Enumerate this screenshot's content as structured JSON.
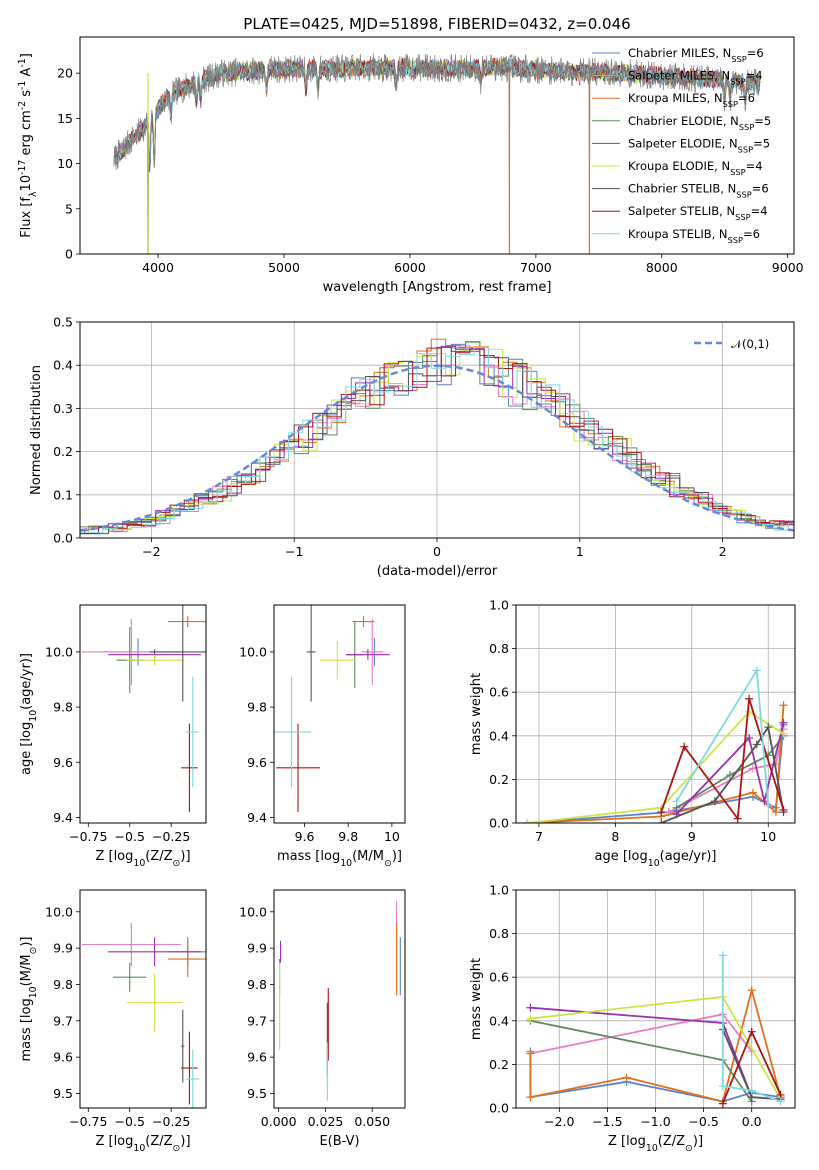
{
  "figure_title": "PLATE=0425, MJD=51898, FIBERID=0432, z=0.046",
  "colors": {
    "Chabrier MILES": "#5b83c7",
    "Salpeter MILES": "#e57fc0",
    "Kroupa MILES": "#e07020",
    "Chabrier ELODIE": "#5f8a5f",
    "Salpeter ELODIE": "#9a2fb0",
    "Kroupa ELODIE": "#c9e64a",
    "Chabrier STELIB": "#555555",
    "Salpeter STELIB": "#aa1515",
    "Kroupa STELIB": "#7fd8e0",
    "data_spectrum": "#808080",
    "gaussian": "#6688dd"
  },
  "chart_data": [
    {
      "id": "spectrum",
      "type": "line",
      "title": "PLATE=0425, MJD=51898, FIBERID=0432, z=0.046",
      "xlabel": "wavelength [Angstrom, rest frame]",
      "ylabel": "Flux [f$_\\lambda$10$^{-17}$ erg cm$^{-2}$ s$^{-1}$ A$^{-1}$]",
      "xlim": [
        3380,
        9050
      ],
      "ylim": [
        0,
        24
      ],
      "xticks": [
        4000,
        5000,
        6000,
        7000,
        8000,
        9000
      ],
      "yticks": [
        0,
        5,
        10,
        15,
        20
      ],
      "grid": false,
      "legend_position": "top-right",
      "legend": [
        {
          "name": "Chabrier MILES",
          "nssp": "6"
        },
        {
          "name": "Salpeter MILES",
          "nssp": "4"
        },
        {
          "name": "Kroupa MILES",
          "nssp": "6"
        },
        {
          "name": "Chabrier ELODIE",
          "nssp": "5"
        },
        {
          "name": "Salpeter ELODIE",
          "nssp": "5"
        },
        {
          "name": "Kroupa ELODIE",
          "nssp": "4"
        },
        {
          "name": "Chabrier STELIB",
          "nssp": "6"
        },
        {
          "name": "Salpeter STELIB",
          "nssp": "4"
        },
        {
          "name": "Kroupa STELIB",
          "nssp": "6"
        }
      ],
      "continuum": {
        "x": [
          3650,
          3750,
          3850,
          3950,
          4050,
          4150,
          4300,
          4500,
          4700,
          4900,
          5100,
          5300,
          5500,
          5700,
          5900,
          6100,
          6300,
          6500,
          6700,
          6900,
          7100,
          7300,
          7500,
          7700,
          7900,
          8100,
          8300,
          8500,
          8700
        ],
        "y": [
          10.5,
          12.0,
          13.5,
          15.0,
          17.0,
          18.0,
          19.0,
          20.0,
          20.2,
          20.4,
          20.5,
          20.5,
          20.5,
          20.6,
          20.6,
          20.6,
          20.5,
          20.5,
          20.7,
          20.5,
          20.3,
          20.2,
          20.1,
          20.0,
          19.8,
          19.6,
          19.4,
          19.2,
          19.0
        ]
      },
      "absorption_features": [
        3934,
        3969,
        4102,
        4304,
        4340,
        4861,
        5175,
        5270,
        5890,
        6563,
        8498,
        8542,
        8662
      ],
      "data_gaps_to_zero": [
        3920,
        6790,
        7425
      ]
    },
    {
      "id": "residuals",
      "type": "line",
      "xlabel": "(data-model)/error",
      "ylabel": "Normed distribution",
      "xlim": [
        -2.5,
        2.5
      ],
      "ylim": [
        0,
        0.5
      ],
      "xticks": [
        -2,
        -1,
        0,
        1,
        2
      ],
      "yticks": [
        0.0,
        0.1,
        0.2,
        0.3,
        0.4,
        0.5
      ],
      "grid": true,
      "legend_position": "top-right",
      "legend": [
        {
          "name": "$\\mathcal{N}(0,1)$"
        }
      ],
      "gaussian": {
        "mu": 0,
        "sigma": 1
      },
      "histogram_bin_width": 0.1
    },
    {
      "id": "age_vs_Z",
      "type": "scatter",
      "xlabel": "Z [log$_{10}$(Z/Z$_\\odot$)]",
      "ylabel": "age  [log$_{10}$(age/yr)]",
      "xlim": [
        -0.8,
        -0.04
      ],
      "ylim": [
        9.38,
        10.17
      ],
      "xticks": [
        -0.75,
        -0.5,
        -0.25
      ],
      "yticks": [
        9.4,
        9.6,
        9.8,
        10.0
      ],
      "grid": false,
      "points": [
        {
          "model": "Chabrier MILES",
          "x": -0.45,
          "y": 10.0,
          "xerr": 0.22,
          "yerr": 0.05
        },
        {
          "model": "Salpeter MILES",
          "x": -0.49,
          "y": 10.0,
          "xerr": 0.3,
          "yerr": 0.12
        },
        {
          "model": "Kroupa MILES",
          "x": -0.15,
          "y": 10.11,
          "xerr": 0.12,
          "yerr": 0.02
        },
        {
          "model": "Chabrier ELODIE",
          "x": -0.5,
          "y": 9.97,
          "xerr": 0.08,
          "yerr": 0.12
        },
        {
          "model": "Salpeter ELODIE",
          "x": -0.35,
          "y": 9.99,
          "xerr": 0.28,
          "yerr": 0.02
        },
        {
          "model": "Kroupa ELODIE",
          "x": -0.35,
          "y": 9.97,
          "xerr": 0.17,
          "yerr": 0.02
        },
        {
          "model": "Chabrier STELIB",
          "x": -0.18,
          "y": 10.0,
          "xerr": 0.2,
          "yerr": 0.18
        },
        {
          "model": "Salpeter STELIB",
          "x": -0.14,
          "y": 9.58,
          "xerr": 0.05,
          "yerr": 0.16
        },
        {
          "model": "Kroupa STELIB",
          "x": -0.12,
          "y": 9.71,
          "xerr": 0.04,
          "yerr": 0.2
        }
      ]
    },
    {
      "id": "age_vs_mass",
      "type": "scatter",
      "xlabel": "mass [log$_{10}$(M/M$_\\odot$)]",
      "ylabel": "",
      "xlim": [
        9.46,
        10.06
      ],
      "ylim": [
        9.38,
        10.17
      ],
      "xticks": [
        9.6,
        9.8,
        10.0
      ],
      "yticks": [
        9.4,
        9.6,
        9.8,
        10.0
      ],
      "grid": false,
      "points": [
        {
          "model": "Chabrier MILES",
          "x": 9.92,
          "y": 10.0,
          "xerr": 0.04,
          "yerr": 0.05
        },
        {
          "model": "Salpeter MILES",
          "x": 9.91,
          "y": 10.0,
          "xerr": 0.05,
          "yerr": 0.12
        },
        {
          "model": "Kroupa MILES",
          "x": 9.87,
          "y": 10.11,
          "xerr": 0.05,
          "yerr": 0.02
        },
        {
          "model": "Chabrier ELODIE",
          "x": 9.83,
          "y": 9.99,
          "xerr": 0.04,
          "yerr": 0.12
        },
        {
          "model": "Salpeter ELODIE",
          "x": 9.89,
          "y": 9.99,
          "xerr": 0.1,
          "yerr": 0.02
        },
        {
          "model": "Kroupa ELODIE",
          "x": 9.75,
          "y": 9.97,
          "xerr": 0.08,
          "yerr": 0.07
        },
        {
          "model": "Chabrier STELIB",
          "x": 9.63,
          "y": 10.0,
          "xerr": 0.02,
          "yerr": 0.18
        },
        {
          "model": "Salpeter STELIB",
          "x": 9.57,
          "y": 9.58,
          "xerr": 0.1,
          "yerr": 0.16
        },
        {
          "model": "Kroupa STELIB",
          "x": 9.54,
          "y": 9.71,
          "xerr": 0.09,
          "yerr": 0.2
        }
      ]
    },
    {
      "id": "mass_weight_vs_age",
      "type": "line",
      "xlabel": "age  [log$_{10}$(age/yr)]",
      "ylabel": "mass weight",
      "xlim": [
        6.7,
        10.35
      ],
      "ylim": [
        0,
        1.0
      ],
      "xticks": [
        7,
        8,
        9,
        10
      ],
      "yticks": [
        0.0,
        0.2,
        0.4,
        0.6,
        0.8,
        1.0
      ],
      "grid": true,
      "series": [
        {
          "name": "Chabrier MILES",
          "x": [
            6.85,
            8.7,
            9.8,
            10.1,
            10.2
          ],
          "y": [
            0.0,
            0.05,
            0.12,
            0.07,
            0.45
          ]
        },
        {
          "name": "Salpeter MILES",
          "x": [
            8.7,
            9.8,
            10.1,
            10.2
          ],
          "y": [
            0.05,
            0.25,
            0.27,
            0.43
          ]
        },
        {
          "name": "Kroupa MILES",
          "x": [
            6.85,
            8.6,
            9.8,
            10.1,
            10.2
          ],
          "y": [
            0.0,
            0.03,
            0.14,
            0.05,
            0.54
          ]
        },
        {
          "name": "Chabrier ELODIE",
          "x": [
            8.8,
            9.5,
            10.0,
            10.2
          ],
          "y": [
            0.07,
            0.22,
            0.31,
            0.4
          ]
        },
        {
          "name": "Salpeter ELODIE",
          "x": [
            8.8,
            9.75,
            9.95,
            10.2
          ],
          "y": [
            0.04,
            0.39,
            0.1,
            0.46
          ]
        },
        {
          "name": "Kroupa ELODIE",
          "x": [
            6.85,
            8.6,
            9.75,
            10.2
          ],
          "y": [
            0.0,
            0.07,
            0.51,
            0.41
          ]
        },
        {
          "name": "Chabrier STELIB",
          "x": [
            8.6,
            9.3,
            9.85,
            10.0,
            10.2
          ],
          "y": [
            0.0,
            0.1,
            0.36,
            0.44,
            0.05
          ]
        },
        {
          "name": "Salpeter STELIB",
          "x": [
            8.6,
            8.9,
            9.6,
            9.75,
            10.2
          ],
          "y": [
            0.05,
            0.35,
            0.02,
            0.57,
            0.06
          ]
        },
        {
          "name": "Kroupa STELIB",
          "x": [
            8.8,
            9.85,
            10.0
          ],
          "y": [
            0.1,
            0.7,
            0.08
          ]
        }
      ]
    },
    {
      "id": "mass_vs_Z",
      "type": "scatter",
      "xlabel": "Z [log$_{10}$(Z/Z$_\\odot$)]",
      "ylabel": "mass [log$_{10}$(M/M$_\\odot$)]",
      "xlim": [
        -0.8,
        -0.04
      ],
      "ylim": [
        9.46,
        10.06
      ],
      "xticks": [
        -0.75,
        -0.5,
        -0.25
      ],
      "yticks": [
        9.5,
        9.6,
        9.7,
        9.8,
        9.9,
        10.0
      ],
      "grid": false,
      "points": [
        {
          "model": "Chabrier MILES",
          "x": -0.15,
          "y": 9.89,
          "xerr": 0.12,
          "yerr": 0.04
        },
        {
          "model": "Salpeter MILES",
          "x": -0.49,
          "y": 9.91,
          "xerr": 0.3,
          "yerr": 0.06
        },
        {
          "model": "Kroupa MILES",
          "x": -0.15,
          "y": 9.87,
          "xerr": 0.12,
          "yerr": 0.05
        },
        {
          "model": "Chabrier ELODIE",
          "x": -0.5,
          "y": 9.82,
          "xerr": 0.1,
          "yerr": 0.04
        },
        {
          "model": "Salpeter ELODIE",
          "x": -0.35,
          "y": 9.89,
          "xerr": 0.28,
          "yerr": 0.04
        },
        {
          "model": "Kroupa ELODIE",
          "x": -0.35,
          "y": 9.75,
          "xerr": 0.17,
          "yerr": 0.08
        },
        {
          "model": "Chabrier STELIB",
          "x": -0.18,
          "y": 9.63,
          "xerr": 0.01,
          "yerr": 0.1
        },
        {
          "model": "Salpeter STELIB",
          "x": -0.14,
          "y": 9.57,
          "xerr": 0.05,
          "yerr": 0.1
        },
        {
          "model": "Kroupa STELIB",
          "x": -0.12,
          "y": 9.54,
          "xerr": 0.04,
          "yerr": 0.08
        }
      ]
    },
    {
      "id": "mass_vs_EBV",
      "type": "scatter",
      "xlabel": "E(B-V)",
      "ylabel": "",
      "xlim": [
        -0.0025,
        0.0675
      ],
      "ylim": [
        9.46,
        10.06
      ],
      "xticks": [
        0.0,
        0.025,
        0.05
      ],
      "xticklabels": [
        "0.000",
        "0.025",
        "0.050"
      ],
      "yticks": [
        9.5,
        9.6,
        9.7,
        9.8,
        9.9,
        10.0
      ],
      "grid": false,
      "points": [
        {
          "model": "Chabrier MILES",
          "x": 0.065,
          "y": 9.85,
          "yerr": 0.08
        },
        {
          "model": "Salpeter MILES",
          "x": 0.063,
          "y": 9.9,
          "yerr": 0.13
        },
        {
          "model": "Kroupa MILES",
          "x": 0.063,
          "y": 9.87,
          "yerr": 0.1
        },
        {
          "model": "Chabrier ELODIE",
          "x": 0.0005,
          "y": 9.82,
          "yerr": 0.05
        },
        {
          "model": "Salpeter ELODIE",
          "x": 0.001,
          "y": 9.89,
          "yerr": 0.03
        },
        {
          "model": "Kroupa ELODIE",
          "x": 0.0005,
          "y": 9.74,
          "yerr": 0.12
        },
        {
          "model": "Chabrier STELIB",
          "x": 0.026,
          "y": 9.65,
          "yerr": 0.1
        },
        {
          "model": "Salpeter STELIB",
          "x": 0.0265,
          "y": 9.69,
          "yerr": 0.1
        },
        {
          "model": "Kroupa STELIB",
          "x": 0.026,
          "y": 9.56,
          "yerr": 0.08
        }
      ]
    },
    {
      "id": "mass_weight_vs_Z",
      "type": "line",
      "xlabel": "Z [log$_{10}$(Z/Z$_\\odot$)]",
      "ylabel": "mass weight",
      "xlim": [
        -2.45,
        0.45
      ],
      "ylim": [
        0,
        1.0
      ],
      "xticks": [
        -2.0,
        -1.5,
        -1.0,
        -0.5,
        0.0
      ],
      "xticklabels": [
        "−2.0",
        "−1.5",
        "−1.0",
        "−0.5",
        "0.0"
      ],
      "yticks": [
        0.0,
        0.2,
        0.4,
        0.6,
        0.8,
        1.0
      ],
      "grid": true,
      "series": [
        {
          "name": "Chabrier MILES",
          "x": [
            -2.3,
            -2.3,
            -1.3,
            -0.3,
            0.0,
            0.3
          ],
          "y": [
            0.26,
            0.05,
            0.12,
            0.03,
            0.07,
            0.05
          ]
        },
        {
          "name": "Salpeter MILES",
          "x": [
            -2.3,
            -0.3,
            0.0
          ],
          "y": [
            0.25,
            0.43,
            0.26
          ]
        },
        {
          "name": "Kroupa MILES",
          "x": [
            -2.3,
            -2.3,
            -1.3,
            -0.3,
            0.0,
            0.3
          ],
          "y": [
            0.25,
            0.05,
            0.14,
            0.03,
            0.54,
            0.05
          ]
        },
        {
          "name": "Chabrier ELODIE",
          "x": [
            -2.3,
            -0.3,
            0.0
          ],
          "y": [
            0.4,
            0.22,
            0.03
          ]
        },
        {
          "name": "Salpeter ELODIE",
          "x": [
            -2.3,
            -0.3,
            0.0
          ],
          "y": [
            0.46,
            0.39,
            0.05
          ]
        },
        {
          "name": "Kroupa ELODIE",
          "x": [
            -2.3,
            -0.3,
            0.3
          ],
          "y": [
            0.41,
            0.51,
            0.04
          ]
        },
        {
          "name": "Chabrier STELIB",
          "x": [
            -0.3,
            0.0,
            0.3
          ],
          "y": [
            0.36,
            0.05,
            0.04
          ]
        },
        {
          "name": "Salpeter STELIB",
          "x": [
            -0.3,
            0.0,
            0.3
          ],
          "y": [
            0.02,
            0.35,
            0.06
          ]
        },
        {
          "name": "Kroupa STELIB",
          "x": [
            -0.3,
            -0.3,
            0.0,
            0.3
          ],
          "y": [
            0.7,
            0.1,
            0.08,
            0.03
          ]
        }
      ]
    }
  ]
}
